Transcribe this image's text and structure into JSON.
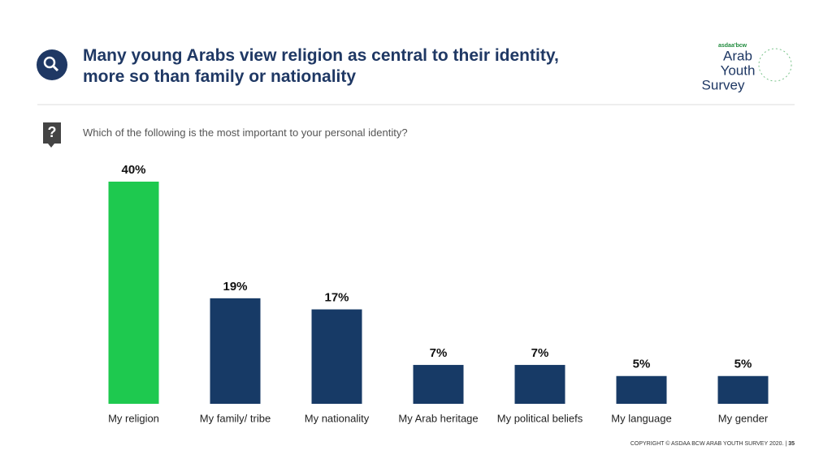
{
  "header": {
    "title": "Many young Arabs view religion as central to their identity, more so than family or nationality",
    "logo": {
      "brand": "asdaa'bcw",
      "lines": [
        "Arab",
        "Youth",
        "Survey"
      ]
    }
  },
  "chart_data": {
    "type": "bar",
    "subtitle": "Which of the following is the most important to your personal identity?",
    "categories": [
      "My religion",
      "My family/ tribe",
      "My nationality",
      "My Arab heritage",
      "My political beliefs",
      "My language",
      "My gender"
    ],
    "values": [
      40,
      19,
      17,
      7,
      7,
      5,
      5
    ],
    "value_labels": [
      "40%",
      "19%",
      "17%",
      "7%",
      "7%",
      "5%",
      "5%"
    ],
    "colors": [
      "#1ec94f",
      "#173a66",
      "#173a66",
      "#173a66",
      "#173a66",
      "#173a66",
      "#173a66"
    ]
  },
  "footer": {
    "copyright": "COPYRIGHT © ASDAA BCW ARAB YOUTH SURVEY 2020. |",
    "page": "35"
  }
}
